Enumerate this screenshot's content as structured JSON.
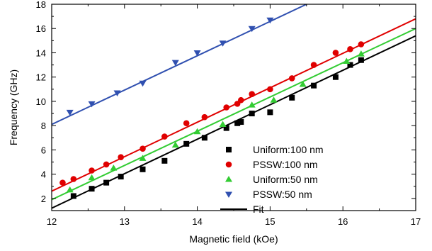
{
  "chart_data": {
    "type": "scatter",
    "xlabel": "Magnetic field (kOe)",
    "ylabel": "Frequency (GHz)",
    "xlim": [
      12,
      17
    ],
    "ylim": [
      1,
      18
    ],
    "xticks": [
      12,
      13,
      14,
      15,
      16,
      17
    ],
    "yticks": [
      2,
      4,
      6,
      8,
      10,
      12,
      14,
      16,
      18
    ],
    "grid": false,
    "legend_position": "bottom-right",
    "series": [
      {
        "name": "Uniform:100 nm",
        "marker": "square",
        "color": "#000000",
        "x": [
          12.3,
          12.55,
          12.75,
          12.95,
          13.25,
          13.55,
          13.85,
          14.1,
          14.4,
          14.55,
          14.6,
          14.75,
          15.0,
          15.3,
          15.6,
          15.9,
          16.1,
          16.25
        ],
        "y": [
          2.2,
          2.8,
          3.3,
          3.8,
          4.4,
          5.1,
          6.5,
          7.0,
          7.8,
          8.2,
          8.3,
          9.0,
          9.1,
          10.3,
          11.3,
          12.0,
          13.0,
          13.4
        ],
        "fit": [
          [
            12,
            1.2
          ],
          [
            17,
            15.4
          ]
        ]
      },
      {
        "name": "PSSW:100 nm",
        "marker": "circle",
        "color": "#e00000",
        "x": [
          12.15,
          12.3,
          12.55,
          12.75,
          12.95,
          13.25,
          13.55,
          13.85,
          14.1,
          14.4,
          14.55,
          14.6,
          14.75,
          15.0,
          15.3,
          15.6,
          15.9,
          16.1,
          16.25
        ],
        "y": [
          3.3,
          3.6,
          4.3,
          4.8,
          5.4,
          6.1,
          7.1,
          8.2,
          8.7,
          9.5,
          9.8,
          10.1,
          10.6,
          11.0,
          11.9,
          13.0,
          14.0,
          14.3,
          14.7
        ],
        "fit": [
          [
            12,
            2.6
          ],
          [
            17,
            16.8
          ]
        ]
      },
      {
        "name": "Uniform:50 nm",
        "marker": "triangle-up",
        "color": "#33cc33",
        "x": [
          12.25,
          12.55,
          12.85,
          13.25,
          13.7,
          14.0,
          14.35,
          14.75,
          15.05,
          15.45,
          16.05,
          16.25
        ],
        "y": [
          2.7,
          3.7,
          4.5,
          5.3,
          6.4,
          7.5,
          8.1,
          9.7,
          10.1,
          11.4,
          13.3,
          13.9
        ],
        "fit": [
          [
            12,
            1.9
          ],
          [
            17,
            16.0
          ]
        ]
      },
      {
        "name": "PSSW:50 nm",
        "marker": "triangle-down",
        "color": "#3050b0",
        "x": [
          12.25,
          12.55,
          12.9,
          13.25,
          13.7,
          14.0,
          14.35,
          14.75,
          15.0
        ],
        "y": [
          9.1,
          9.8,
          10.7,
          11.5,
          13.2,
          14.0,
          14.8,
          16.0,
          16.7
        ],
        "fit": [
          [
            12,
            8.1
          ],
          [
            15.5,
            18
          ]
        ]
      }
    ],
    "legend": [
      {
        "label": "Uniform:100 nm",
        "kind": "marker",
        "marker": "square",
        "color": "#000000"
      },
      {
        "label": "PSSW:100 nm",
        "kind": "marker",
        "marker": "circle",
        "color": "#e00000"
      },
      {
        "label": "Uniform:50 nm",
        "kind": "marker",
        "marker": "triangle-up",
        "color": "#33cc33"
      },
      {
        "label": "PSSW:50 nm",
        "kind": "marker",
        "marker": "triangle-down",
        "color": "#3050b0"
      },
      {
        "label": "Fit",
        "kind": "line",
        "color": "#000000"
      }
    ]
  }
}
